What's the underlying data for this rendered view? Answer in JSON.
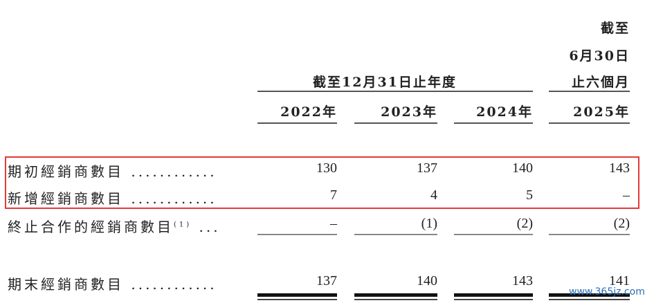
{
  "header": {
    "period_6m_line1": "截至",
    "period_6m_line2": "6月30日",
    "period_6m_line3": "止六個月",
    "period_year": "截至12月31日止年度"
  },
  "columns": [
    "2022年",
    "2023年",
    "2024年",
    "2025年"
  ],
  "rows": [
    {
      "label": "期初經銷商數目",
      "dots": "............",
      "values": [
        "130",
        "137",
        "140",
        "143"
      ]
    },
    {
      "label": "新增經銷商數目",
      "dots": "............",
      "values": [
        "7",
        "4",
        "5",
        "–"
      ]
    },
    {
      "label": "終止合作的經銷商數目",
      "note": "(1)",
      "dots": "...",
      "values": [
        "–",
        "(1)",
        "(2)",
        "(2)"
      ]
    },
    {
      "label": "期末經銷商數目",
      "dots": "............",
      "values": [
        "137",
        "140",
        "143",
        "141"
      ]
    }
  ],
  "highlight_color": "#e53935",
  "watermark": "www.365jz.com"
}
